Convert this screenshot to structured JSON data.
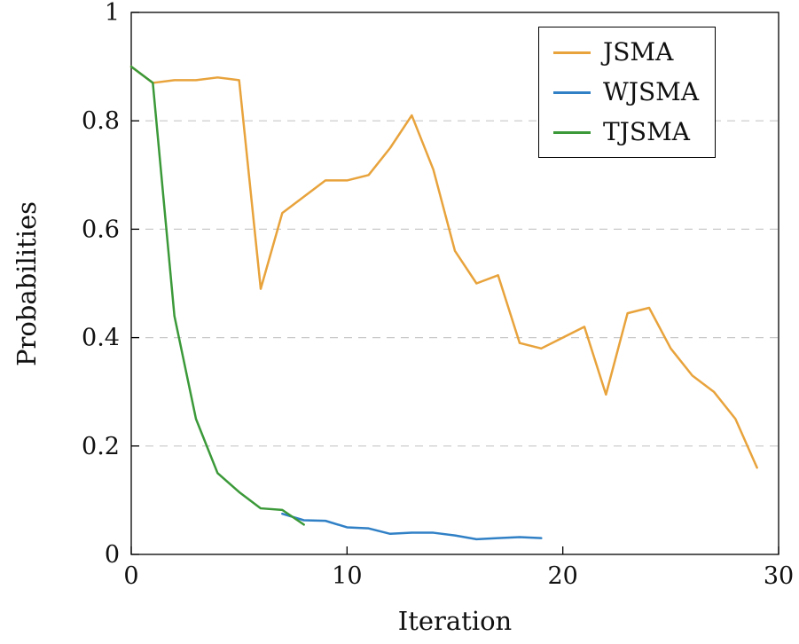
{
  "chart_data": {
    "type": "line",
    "title": "",
    "xlabel": "Iteration",
    "ylabel": "Probabilities",
    "xlim": [
      0,
      30
    ],
    "ylim": [
      0,
      1
    ],
    "x_ticks": [
      0,
      10,
      20,
      30
    ],
    "y_ticks": [
      0,
      0.2,
      0.4,
      0.6,
      0.8,
      1
    ],
    "grid": "horizontal-dashed-at-0.2-0.4-0.6-0.8",
    "legend_position": "top-right",
    "background_color": "#ffffff",
    "axis_color": "#000000",
    "grid_color": "#c9c9c9",
    "series": [
      {
        "name": "JSMA",
        "color": "#E8A33C",
        "x": [
          0,
          1,
          2,
          3,
          4,
          5,
          6,
          7,
          8,
          9,
          10,
          11,
          12,
          13,
          14,
          15,
          16,
          17,
          18,
          19,
          20,
          21,
          22,
          23,
          24,
          25,
          26,
          27,
          28,
          29
        ],
        "values": [
          0.9,
          0.87,
          0.875,
          0.875,
          0.88,
          0.875,
          0.49,
          0.63,
          0.66,
          0.69,
          0.69,
          0.7,
          0.75,
          0.81,
          0.71,
          0.56,
          0.5,
          0.515,
          0.39,
          0.38,
          0.4,
          0.42,
          0.295,
          0.445,
          0.455,
          0.38,
          0.33,
          0.3,
          0.25,
          0.16
        ]
      },
      {
        "name": "WJSMA",
        "color": "#3080C6",
        "x": [
          7,
          8,
          9,
          10,
          11,
          12,
          13,
          14,
          15,
          16,
          17,
          18,
          19
        ],
        "values": [
          0.075,
          0.063,
          0.062,
          0.05,
          0.048,
          0.038,
          0.04,
          0.04,
          0.035,
          0.028,
          0.03,
          0.032,
          0.03
        ]
      },
      {
        "name": "TJSMA",
        "color": "#3B9939",
        "x": [
          0,
          1,
          2,
          3,
          4,
          5,
          6,
          7,
          8
        ],
        "values": [
          0.9,
          0.87,
          0.44,
          0.25,
          0.15,
          0.115,
          0.085,
          0.082,
          0.055
        ]
      }
    ]
  }
}
